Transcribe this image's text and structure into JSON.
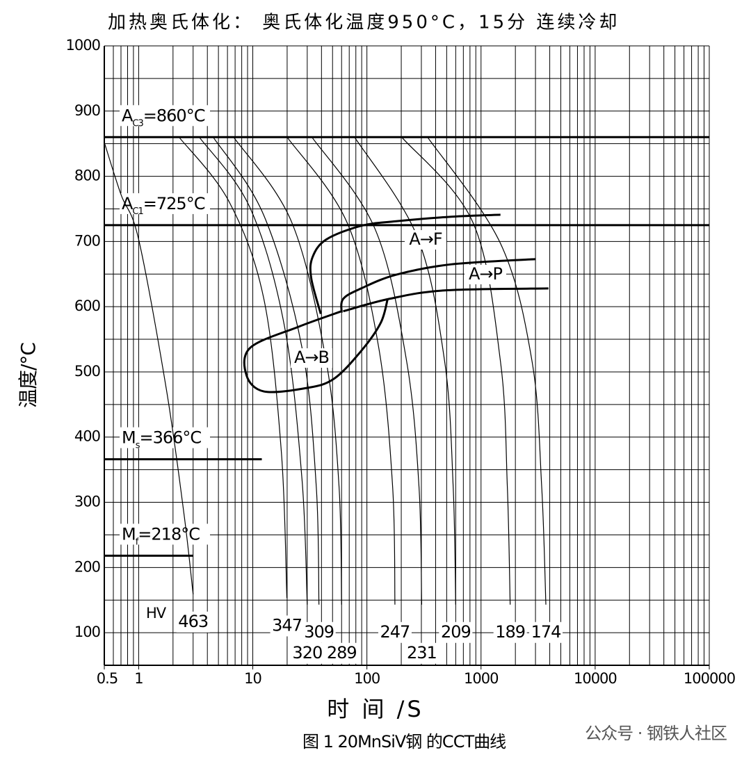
{
  "chart_data": {
    "type": "cct",
    "title": "加热奥氏体化：    奥氏体化温度950°C，15分      连续冷却",
    "xlabel": "时 间 /S",
    "ylabel": "温度/°C",
    "caption": "图 1 20MnSiV钢 的CCT曲线",
    "watermark": "公众号 · 钢铁人社区",
    "hv_label": "HV",
    "xscale": "log",
    "xlim": [
      0.5,
      100000
    ],
    "xticks": [
      0.5,
      1,
      10,
      100,
      1000,
      10000,
      100000
    ],
    "ylim": [
      50,
      1000
    ],
    "yticks": [
      100,
      200,
      300,
      400,
      500,
      600,
      700,
      800,
      900,
      1000
    ],
    "grid": true,
    "color": "#000000",
    "lines": [
      {
        "name": "A",
        "sub": "C3",
        "label": "=860°C",
        "value": 860
      },
      {
        "name": "A",
        "sub": "C1",
        "label": "=725°C",
        "value": 725
      },
      {
        "name": "M",
        "sub": "s",
        "label": "=366°C",
        "value": 366,
        "xend": 12
      },
      {
        "name": "M",
        "sub": "f",
        "label": "=218°C",
        "value": 218,
        "xend": 3
      }
    ],
    "series": [
      {
        "name": "463",
        "x": [
          0.5,
          0.7,
          1.0,
          1.75,
          2.5,
          3.0
        ],
        "values": [
          852,
          772,
          703,
          473,
          281,
          159
        ]
      },
      {
        "name": "347",
        "x": [
          2.26,
          6.2,
          12.5,
          17.8,
          19.9
        ],
        "values": [
          860,
          761,
          612,
          377,
          153
        ]
      },
      {
        "name": "320",
        "x": [
          3.4,
          9.5,
          19,
          27,
          30
        ],
        "values": [
          860,
          751,
          569,
          335,
          143
        ]
      },
      {
        "name": "309",
        "x": [
          4.5,
          12.5,
          27,
          36,
          38
        ],
        "values": [
          860,
          740,
          537,
          324,
          143
        ]
      },
      {
        "name": "289",
        "x": [
          6.8,
          22,
          44,
          57,
          60
        ],
        "values": [
          860,
          729,
          516,
          324,
          143
        ]
      },
      {
        "name": "247",
        "x": [
          20,
          67,
          127,
          168,
          176
        ],
        "values": [
          860,
          729,
          537,
          324,
          143
        ]
      },
      {
        "name": "231",
        "x": [
          33,
          118,
          223,
          286,
          302
        ],
        "values": [
          860,
          719,
          516,
          324,
          143
        ]
      },
      {
        "name": "209",
        "x": [
          78,
          275,
          480,
          570,
          600
        ],
        "values": [
          860,
          708,
          516,
          324,
          143
        ]
      },
      {
        "name": "189",
        "x": [
          202,
          850,
          1480,
          1700,
          1800
        ],
        "values": [
          860,
          729,
          516,
          324,
          143
        ]
      },
      {
        "name": "174",
        "x": [
          340,
          1480,
          2800,
          3400,
          3700
        ],
        "values": [
          860,
          697,
          516,
          324,
          143
        ]
      }
    ],
    "regions": [
      {
        "name": "A→F",
        "x": [
          39.4,
          32.5,
          33.4,
          44,
          89,
          180,
          550,
          1480
        ],
        "values": [
          589,
          644,
          676,
          703,
          724,
          731,
          738,
          741
        ]
      },
      {
        "name": "A→P",
        "x": [
          60,
          62,
          89,
          180,
          550,
          3000
        ],
        "values": [
          591,
          612,
          628,
          649,
          665,
          673
        ]
      },
      {
        "x": [
          62,
          157,
          480,
          3900
        ],
        "values": [
          593,
          612,
          625,
          628
        ]
      },
      {
        "name": "A→B",
        "x": [
          60,
          25,
          9.5,
          8.8,
          12.5,
          29,
          51,
          89,
          132,
          152
        ],
        "values": [
          593,
          569,
          537,
          495,
          470,
          475,
          489,
          532,
          575,
          612
        ]
      }
    ]
  }
}
